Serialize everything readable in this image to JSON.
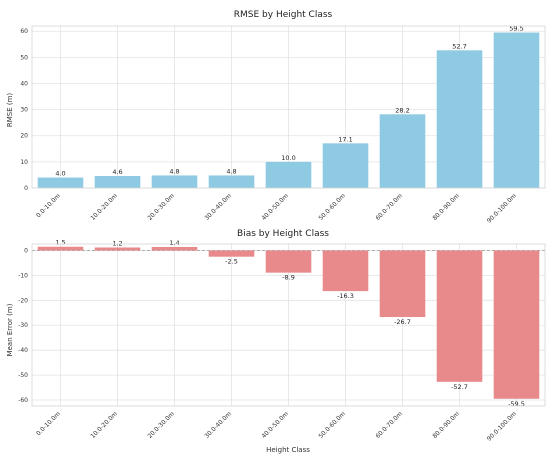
{
  "chart_data": [
    {
      "type": "bar",
      "title": "RMSE by Height Class",
      "xlabel": "",
      "ylabel": "RMSE (m)",
      "categories": [
        "0.0-10.0m",
        "10.0-20.0m",
        "20.0-30.0m",
        "30.0-40.0m",
        "40.0-50.0m",
        "50.0-60.0m",
        "60.0-70.0m",
        "80.0-90.0m",
        "90.0-100.0m"
      ],
      "values": [
        4.0,
        4.6,
        4.8,
        4.8,
        10.0,
        17.1,
        28.2,
        52.7,
        59.5
      ],
      "data_labels": [
        "4.0",
        "4.6",
        "4.8",
        "4.8",
        "10.0",
        "17.1",
        "28.2",
        "52.7",
        "59.5"
      ],
      "ylim": [
        0,
        62
      ],
      "yticks": [
        0,
        10,
        20,
        30,
        40,
        50,
        60
      ],
      "color": "#8ecae2",
      "grid": true
    },
    {
      "type": "bar",
      "title": "Bias by Height Class",
      "xlabel": "Height Class",
      "ylabel": "Mean Error (m)",
      "categories": [
        "0.0-10.0m",
        "10.0-20.0m",
        "20.0-30.0m",
        "30.0-40.0m",
        "40.0-50.0m",
        "50.0-60.0m",
        "60.0-70.0m",
        "80.0-90.0m",
        "90.0-100.0m"
      ],
      "values": [
        1.5,
        1.2,
        1.4,
        -2.5,
        -8.9,
        -16.3,
        -26.7,
        -52.7,
        -59.5
      ],
      "data_labels": [
        "1.5",
        "1.2",
        "1.4",
        "-2.5",
        "-8.9",
        "-16.3",
        "-26.7",
        "-52.7",
        "-59.5"
      ],
      "ylim": [
        -62.4,
        2.6
      ],
      "yticks": [
        0,
        -10,
        -20,
        -30,
        -40,
        -50,
        -60
      ],
      "color": "#e88a8b",
      "zero_line": true,
      "grid": true
    }
  ]
}
